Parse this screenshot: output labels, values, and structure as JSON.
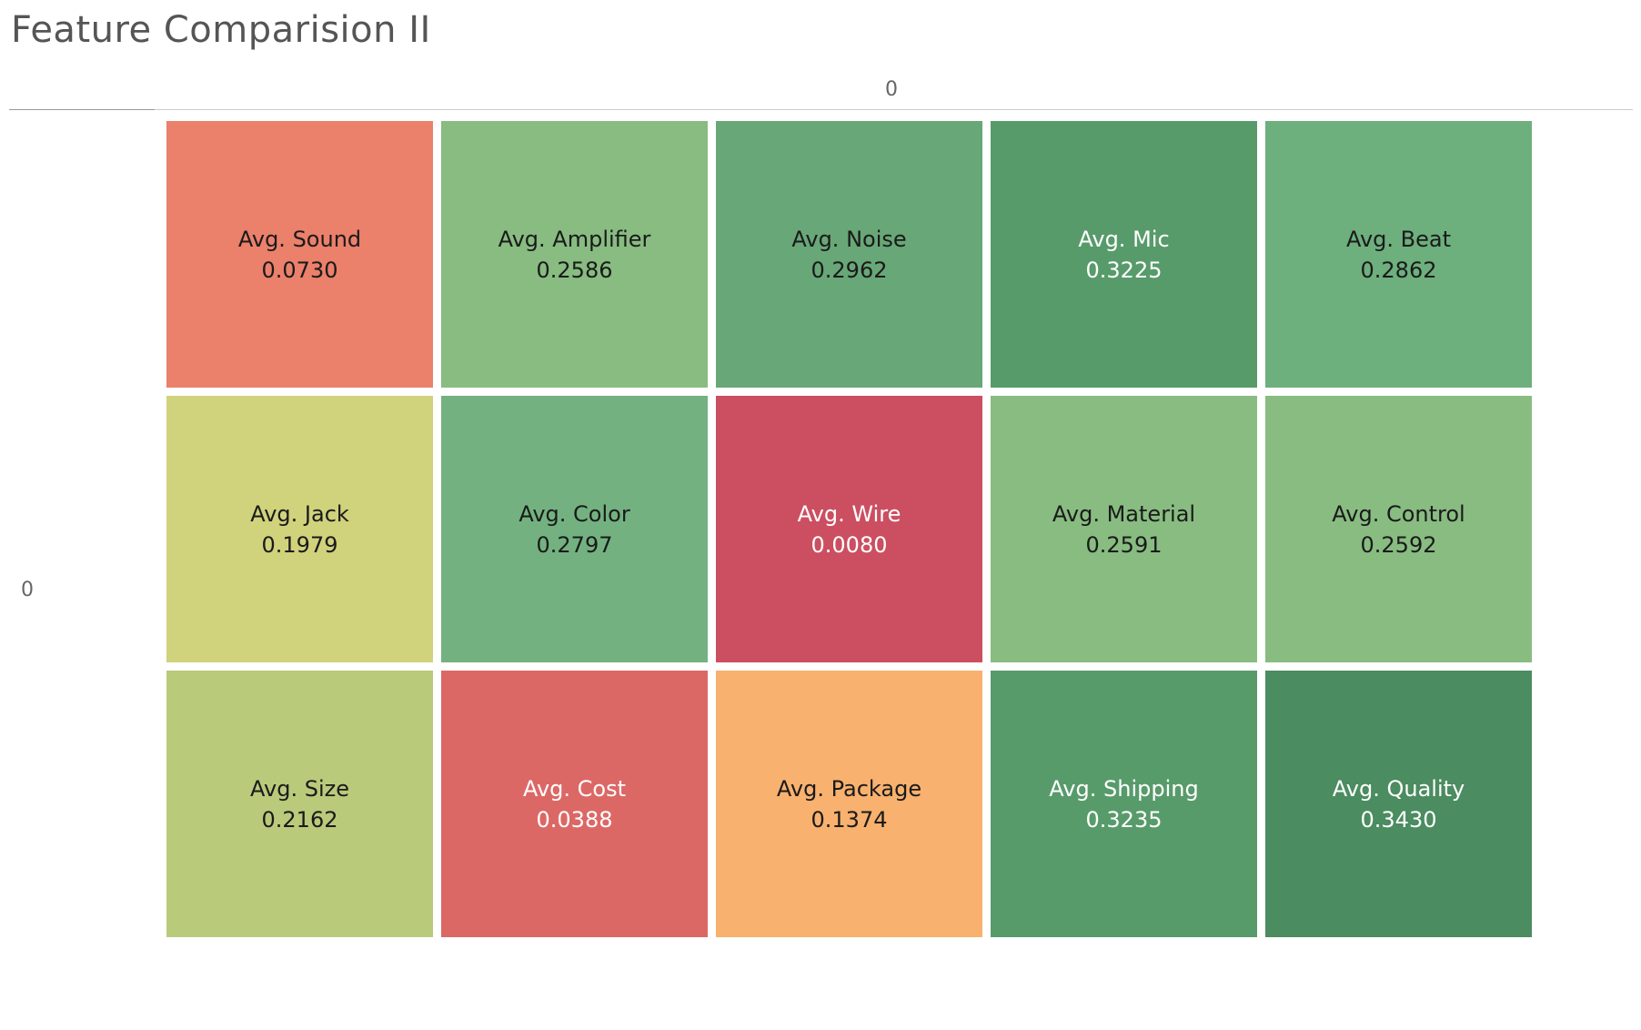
{
  "title": "Feature Comparision II",
  "column_header": "0",
  "row_header": "0",
  "chart_data": {
    "type": "heatmap",
    "title": "Feature Comparision II",
    "columns": [
      "0"
    ],
    "rows": [
      "0"
    ],
    "color_scale": "red-yellow-green diverging",
    "cells": [
      {
        "label": "Avg. Sound",
        "value": 0.073,
        "value_text": "0.0730",
        "color": "#eb806b",
        "text_color": "#1a1a1a"
      },
      {
        "label": "Avg. Amplifier",
        "value": 0.2586,
        "value_text": "0.2586",
        "color": "#88bc81",
        "text_color": "#1a1a1a"
      },
      {
        "label": "Avg. Noise",
        "value": 0.2962,
        "value_text": "0.2962",
        "color": "#68a777",
        "text_color": "#1a1a1a"
      },
      {
        "label": "Avg. Mic",
        "value": 0.3225,
        "value_text": "0.3225",
        "color": "#589b6b",
        "text_color": "#ffffff"
      },
      {
        "label": "Avg. Beat",
        "value": 0.2862,
        "value_text": "0.2862",
        "color": "#6daf7d",
        "text_color": "#1a1a1a"
      },
      {
        "label": "Avg. Jack",
        "value": 0.1979,
        "value_text": "0.1979",
        "color": "#d0d27c",
        "text_color": "#1a1a1a"
      },
      {
        "label": "Avg. Color",
        "value": 0.2797,
        "value_text": "0.2797",
        "color": "#73b280",
        "text_color": "#1a1a1a"
      },
      {
        "label": "Avg. Wire",
        "value": 0.008,
        "value_text": "0.0080",
        "color": "#cb4f61",
        "text_color": "#ffffff"
      },
      {
        "label": "Avg. Material",
        "value": 0.2591,
        "value_text": "0.2591",
        "color": "#88bc81",
        "text_color": "#1a1a1a"
      },
      {
        "label": "Avg. Control",
        "value": 0.2592,
        "value_text": "0.2592",
        "color": "#88bc81",
        "text_color": "#1a1a1a"
      },
      {
        "label": "Avg. Size",
        "value": 0.2162,
        "value_text": "0.2162",
        "color": "#b9ca7b",
        "text_color": "#1a1a1a"
      },
      {
        "label": "Avg. Cost",
        "value": 0.0388,
        "value_text": "0.0388",
        "color": "#dc6866",
        "text_color": "#ffffff"
      },
      {
        "label": "Avg. Package",
        "value": 0.1374,
        "value_text": "0.1374",
        "color": "#f8b16e",
        "text_color": "#1a1a1a"
      },
      {
        "label": "Avg. Shipping",
        "value": 0.3235,
        "value_text": "0.3235",
        "color": "#589b6b",
        "text_color": "#ffffff"
      },
      {
        "label": "Avg. Quality",
        "value": 0.343,
        "value_text": "0.3430",
        "color": "#4b8c60",
        "text_color": "#ffffff"
      }
    ]
  }
}
